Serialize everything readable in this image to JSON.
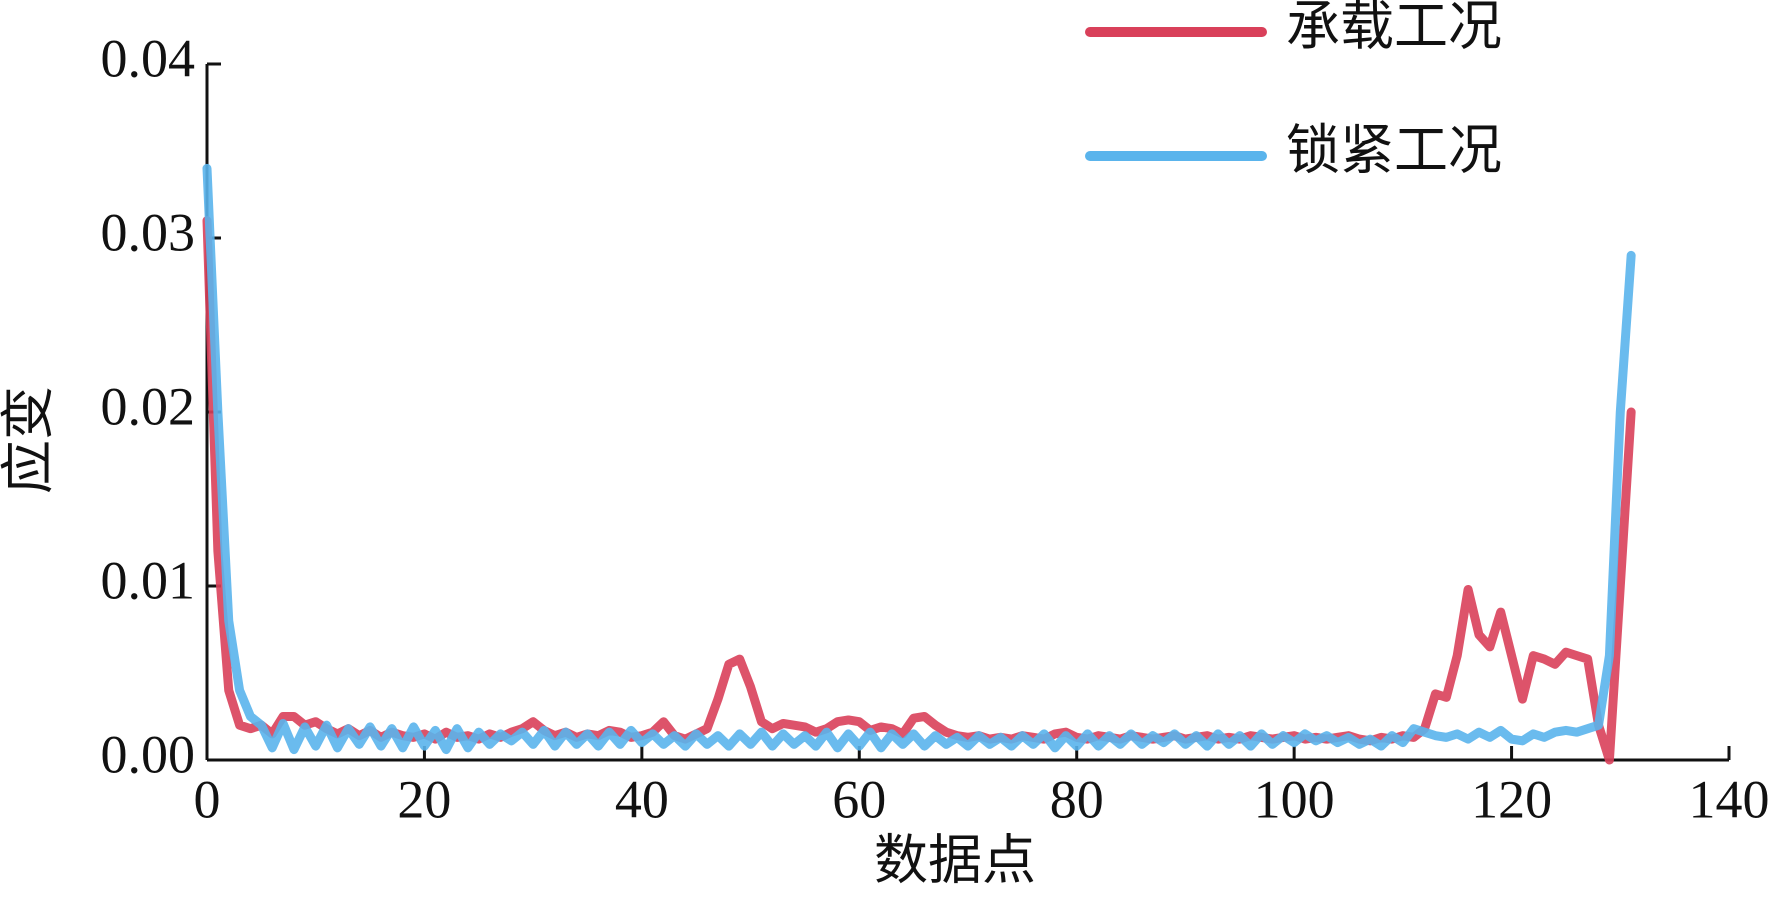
{
  "chart_data": {
    "type": "line",
    "xlabel": "数据点",
    "ylabel": "应变",
    "x": [
      0,
      1,
      2,
      3,
      4,
      5,
      6,
      7,
      8,
      9,
      10,
      11,
      12,
      13,
      14,
      15,
      16,
      17,
      18,
      19,
      20,
      21,
      22,
      23,
      24,
      25,
      26,
      27,
      28,
      29,
      30,
      31,
      32,
      33,
      34,
      35,
      36,
      37,
      38,
      39,
      40,
      41,
      42,
      43,
      44,
      45,
      46,
      47,
      48,
      49,
      50,
      51,
      52,
      53,
      54,
      55,
      56,
      57,
      58,
      59,
      60,
      61,
      62,
      63,
      64,
      65,
      66,
      67,
      68,
      69,
      70,
      71,
      72,
      73,
      74,
      75,
      76,
      77,
      78,
      79,
      80,
      81,
      82,
      83,
      84,
      85,
      86,
      87,
      88,
      89,
      90,
      91,
      92,
      93,
      94,
      95,
      96,
      97,
      98,
      99,
      100,
      101,
      102,
      103,
      104,
      105,
      106,
      107,
      108,
      109,
      110,
      111,
      112,
      113,
      114,
      115,
      116,
      117,
      118,
      119,
      120,
      121,
      122,
      123,
      124,
      125,
      126,
      127,
      128,
      129,
      130,
      131
    ],
    "series": [
      {
        "name": "承载工况",
        "color": "#d9405a",
        "values": [
          0.031,
          0.012,
          0.004,
          0.002,
          0.0018,
          0.002,
          0.0015,
          0.0025,
          0.0025,
          0.002,
          0.0022,
          0.0018,
          0.0015,
          0.0018,
          0.0014,
          0.0017,
          0.0013,
          0.0016,
          0.0014,
          0.0013,
          0.0015,
          0.0012,
          0.0016,
          0.0013,
          0.0014,
          0.0012,
          0.0015,
          0.0013,
          0.0016,
          0.0018,
          0.0022,
          0.0017,
          0.0014,
          0.0016,
          0.0013,
          0.0015,
          0.0014,
          0.0017,
          0.0016,
          0.0013,
          0.0014,
          0.0016,
          0.0022,
          0.0014,
          0.0012,
          0.0015,
          0.0018,
          0.0035,
          0.0055,
          0.0058,
          0.0042,
          0.0022,
          0.0018,
          0.0021,
          0.002,
          0.0019,
          0.0016,
          0.0018,
          0.0022,
          0.0023,
          0.0022,
          0.0017,
          0.0019,
          0.0018,
          0.0015,
          0.0024,
          0.0025,
          0.002,
          0.0016,
          0.0014,
          0.0013,
          0.0014,
          0.0012,
          0.0013,
          0.0012,
          0.0014,
          0.0013,
          0.0012,
          0.0015,
          0.0016,
          0.0013,
          0.0012,
          0.0014,
          0.0013,
          0.0012,
          0.0014,
          0.0013,
          0.0012,
          0.0013,
          0.0014,
          0.0012,
          0.0013,
          0.0014,
          0.0012,
          0.0013,
          0.0012,
          0.0014,
          0.0013,
          0.0012,
          0.0013,
          0.0014,
          0.0012,
          0.0013,
          0.0012,
          0.0013,
          0.0014,
          0.0012,
          0.0011,
          0.0013,
          0.0012,
          0.0014,
          0.0013,
          0.0018,
          0.0038,
          0.0036,
          0.006,
          0.0098,
          0.0072,
          0.0065,
          0.0085,
          0.006,
          0.0035,
          0.006,
          0.0058,
          0.0055,
          0.0062,
          0.006,
          0.0058,
          0.002,
          0.0,
          0.01,
          0.02
        ]
      },
      {
        "name": "锁紧工况",
        "color": "#5ab4ec",
        "values": [
          0.034,
          0.02,
          0.008,
          0.004,
          0.0025,
          0.002,
          0.0007,
          0.0021,
          0.0006,
          0.0019,
          0.0008,
          0.002,
          0.0007,
          0.0018,
          0.0009,
          0.0019,
          0.0008,
          0.0018,
          0.0007,
          0.0019,
          0.0008,
          0.0017,
          0.0006,
          0.0018,
          0.0007,
          0.0016,
          0.0009,
          0.0015,
          0.0011,
          0.0016,
          0.0009,
          0.0017,
          0.0008,
          0.0016,
          0.0009,
          0.0015,
          0.0008,
          0.0016,
          0.0009,
          0.0017,
          0.001,
          0.0015,
          0.0009,
          0.0014,
          0.0008,
          0.0015,
          0.0009,
          0.0014,
          0.0008,
          0.0015,
          0.0009,
          0.0016,
          0.0008,
          0.0015,
          0.0009,
          0.0014,
          0.0008,
          0.0016,
          0.0007,
          0.0015,
          0.0008,
          0.0016,
          0.0007,
          0.0015,
          0.0009,
          0.0015,
          0.0008,
          0.0014,
          0.0009,
          0.0013,
          0.0008,
          0.0014,
          0.0009,
          0.0013,
          0.0008,
          0.0014,
          0.0009,
          0.0015,
          0.0007,
          0.0014,
          0.0008,
          0.0015,
          0.0008,
          0.0014,
          0.0009,
          0.0015,
          0.0009,
          0.0014,
          0.001,
          0.0015,
          0.0009,
          0.0014,
          0.0008,
          0.0015,
          0.0009,
          0.0014,
          0.0008,
          0.0015,
          0.0009,
          0.0014,
          0.001,
          0.0015,
          0.0011,
          0.0014,
          0.001,
          0.0013,
          0.0009,
          0.0012,
          0.0008,
          0.0014,
          0.001,
          0.0018,
          0.0016,
          0.0014,
          0.0013,
          0.0015,
          0.0012,
          0.0016,
          0.0013,
          0.0017,
          0.0012,
          0.0011,
          0.0015,
          0.0013,
          0.0016,
          0.0017,
          0.0016,
          0.0018,
          0.002,
          0.006,
          0.02,
          0.029
        ]
      }
    ],
    "xlim": [
      0,
      140
    ],
    "xticks": [
      0,
      20,
      40,
      60,
      80,
      100,
      120,
      140
    ],
    "ylim": [
      0,
      0.04
    ],
    "yticks": [
      {
        "value": 0,
        "label": "0.00"
      },
      0.01,
      0.02,
      0.03,
      0.04
    ],
    "legend": "upper right"
  }
}
